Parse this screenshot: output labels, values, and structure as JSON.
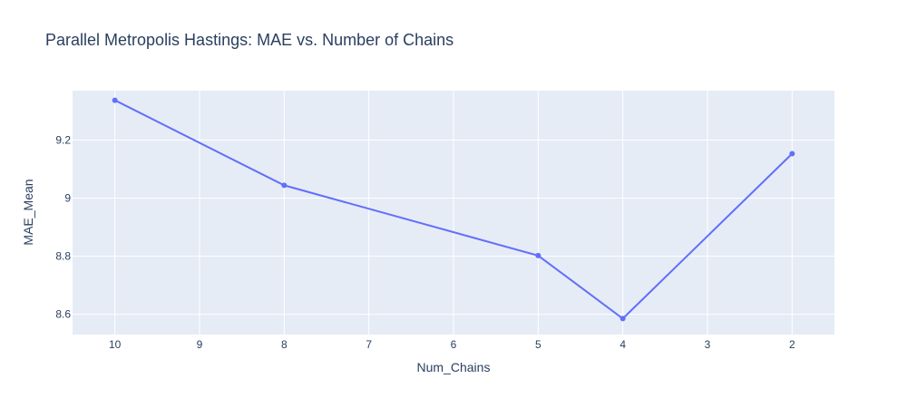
{
  "chart_data": {
    "type": "line",
    "title": "Parallel Metropolis Hastings: MAE vs. Number of Chains",
    "xlabel": "Num_Chains",
    "ylabel": "MAE_Mean",
    "x_reversed": true,
    "xlim": [
      10.5,
      1.5
    ],
    "ylim": [
      8.53,
      9.37
    ],
    "x_ticks": [
      10,
      9,
      8,
      7,
      6,
      5,
      4,
      3,
      2
    ],
    "y_ticks": [
      8.6,
      8.8,
      9,
      9.2
    ],
    "y_tick_labels": [
      "8.6",
      "8.8",
      "9",
      "9.2"
    ],
    "grid": true,
    "series": [
      {
        "x": [
          10,
          8,
          5,
          4,
          2
        ],
        "y": [
          9.337,
          9.044,
          8.802,
          8.585,
          9.153
        ],
        "mode": "lines+markers"
      }
    ],
    "colors": {
      "line": "#636efa",
      "plot_bg": "#e5ecf6",
      "grid": "#ffffff",
      "text": "#2a3f5f"
    }
  }
}
